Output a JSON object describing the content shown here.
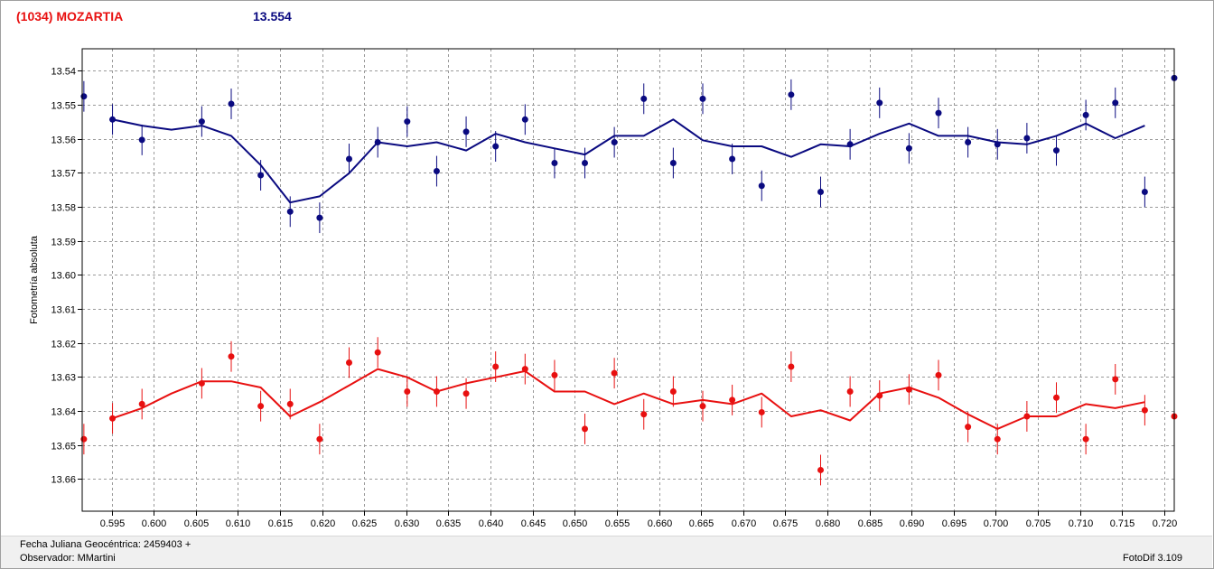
{
  "title": {
    "object": "(1034) MOZARTIA",
    "magnitude": "13.554"
  },
  "footer": {
    "jd_label": "Fecha Juliana Geocéntrica: 2459403 +",
    "observer": "Observador: MMartini",
    "software": "FotoDif 3.109"
  },
  "colors": {
    "series_blue": "#0a0a80",
    "series_red": "#e81010",
    "title_name": "#e81010",
    "title_mag": "#0a0a80"
  },
  "chart_data": {
    "type": "scatter",
    "ylabel": "Fotometría absoluta",
    "xlabel": "",
    "xlim": [
      0.5915,
      0.7212
    ],
    "ylim": [
      13.5335,
      13.6695
    ],
    "y_inverted": true,
    "grid": true,
    "x_ticks": [
      "0.595",
      "0.600",
      "0.605",
      "0.610",
      "0.615",
      "0.620",
      "0.625",
      "0.630",
      "0.635",
      "0.640",
      "0.645",
      "0.650",
      "0.655",
      "0.660",
      "0.665",
      "0.670",
      "0.675",
      "0.680",
      "0.685",
      "0.690",
      "0.695",
      "0.700",
      "0.705",
      "0.710",
      "0.715",
      "0.720"
    ],
    "y_ticks": [
      "13.54",
      "13.55",
      "13.56",
      "13.57",
      "13.58",
      "13.59",
      "13.60",
      "13.61",
      "13.62",
      "13.63",
      "13.64",
      "13.65",
      "13.66"
    ],
    "series": [
      {
        "color": "#0a0a80",
        "error": 0.0045,
        "points": [
          [
            0.5917,
            13.5475
          ],
          [
            0.5951,
            13.5543
          ],
          [
            0.5986,
            13.5603
          ],
          [
            0.6057,
            13.5549
          ],
          [
            0.6092,
            13.5497
          ],
          [
            0.6127,
            13.5707
          ],
          [
            0.6162,
            13.5814
          ],
          [
            0.6197,
            13.5832
          ],
          [
            0.6232,
            13.5659
          ],
          [
            0.6266,
            13.561
          ],
          [
            0.6301,
            13.5549
          ],
          [
            0.6336,
            13.5695
          ],
          [
            0.6371,
            13.5579
          ],
          [
            0.6406,
            13.5622
          ],
          [
            0.6441,
            13.5543
          ],
          [
            0.6476,
            13.5671
          ],
          [
            0.6512,
            13.5671
          ],
          [
            0.6547,
            13.561
          ],
          [
            0.6582,
            13.5482
          ],
          [
            0.6617,
            13.5671
          ],
          [
            0.6652,
            13.5482
          ],
          [
            0.6687,
            13.5659
          ],
          [
            0.6722,
            13.5738
          ],
          [
            0.6757,
            13.547
          ],
          [
            0.6792,
            13.5756
          ],
          [
            0.6827,
            13.5616
          ],
          [
            0.6862,
            13.5494
          ],
          [
            0.6897,
            13.5628
          ],
          [
            0.6932,
            13.5524
          ],
          [
            0.6967,
            13.561
          ],
          [
            0.7002,
            13.5616
          ],
          [
            0.7037,
            13.5598
          ],
          [
            0.7072,
            13.5634
          ],
          [
            0.7107,
            13.553
          ],
          [
            0.7142,
            13.5494
          ],
          [
            0.7177,
            13.5756
          ],
          [
            0.7212,
            13.5421
          ]
        ],
        "line": [
          [
            0.5951,
            13.5543
          ],
          [
            0.5986,
            13.5561
          ],
          [
            0.6021,
            13.5573
          ],
          [
            0.6057,
            13.5561
          ],
          [
            0.6092,
            13.5591
          ],
          [
            0.6127,
            13.5677
          ],
          [
            0.6162,
            13.5787
          ],
          [
            0.6197,
            13.5769
          ],
          [
            0.6232,
            13.5701
          ],
          [
            0.6266,
            13.561
          ],
          [
            0.6301,
            13.5622
          ],
          [
            0.6336,
            13.561
          ],
          [
            0.6371,
            13.5634
          ],
          [
            0.6406,
            13.5585
          ],
          [
            0.6441,
            13.561
          ],
          [
            0.6476,
            13.5628
          ],
          [
            0.6512,
            13.5646
          ],
          [
            0.6547,
            13.5591
          ],
          [
            0.6582,
            13.5591
          ],
          [
            0.6617,
            13.5543
          ],
          [
            0.6652,
            13.5604
          ],
          [
            0.6687,
            13.5622
          ],
          [
            0.6722,
            13.5622
          ],
          [
            0.6757,
            13.5653
          ],
          [
            0.6792,
            13.5616
          ],
          [
            0.6827,
            13.5622
          ],
          [
            0.6862,
            13.5585
          ],
          [
            0.6897,
            13.5555
          ],
          [
            0.6932,
            13.5591
          ],
          [
            0.6967,
            13.5591
          ],
          [
            0.7002,
            13.561
          ],
          [
            0.7037,
            13.5616
          ],
          [
            0.7072,
            13.5591
          ],
          [
            0.7107,
            13.5555
          ],
          [
            0.7142,
            13.5598
          ],
          [
            0.7177,
            13.5561
          ]
        ]
      },
      {
        "color": "#e81010",
        "error": 0.0045,
        "points": [
          [
            0.5917,
            13.6483
          ],
          [
            0.5951,
            13.6422
          ],
          [
            0.5986,
            13.638
          ],
          [
            0.6057,
            13.6319
          ],
          [
            0.6092,
            13.624
          ],
          [
            0.6127,
            13.6386
          ],
          [
            0.6162,
            13.638
          ],
          [
            0.6197,
            13.6483
          ],
          [
            0.6232,
            13.6258
          ],
          [
            0.6266,
            13.6228
          ],
          [
            0.6301,
            13.6343
          ],
          [
            0.6336,
            13.6343
          ],
          [
            0.6371,
            13.6349
          ],
          [
            0.6406,
            13.627
          ],
          [
            0.6441,
            13.6277
          ],
          [
            0.6476,
            13.6295
          ],
          [
            0.6512,
            13.6453
          ],
          [
            0.6547,
            13.6289
          ],
          [
            0.6582,
            13.641
          ],
          [
            0.6617,
            13.6343
          ],
          [
            0.6652,
            13.6386
          ],
          [
            0.6687,
            13.6368
          ],
          [
            0.6722,
            13.6404
          ],
          [
            0.6757,
            13.627
          ],
          [
            0.6792,
            13.6574
          ],
          [
            0.6827,
            13.6343
          ],
          [
            0.6862,
            13.6355
          ],
          [
            0.6897,
            13.6337
          ],
          [
            0.6932,
            13.6295
          ],
          [
            0.6967,
            13.6447
          ],
          [
            0.7002,
            13.6483
          ],
          [
            0.7037,
            13.6416
          ],
          [
            0.7072,
            13.6361
          ],
          [
            0.7107,
            13.6483
          ],
          [
            0.7142,
            13.6307
          ],
          [
            0.7177,
            13.6398
          ],
          [
            0.7212,
            13.6416
          ]
        ],
        "line": [
          [
            0.5951,
            13.6422
          ],
          [
            0.5986,
            13.6392
          ],
          [
            0.6021,
            13.6349
          ],
          [
            0.6057,
            13.6313
          ],
          [
            0.6092,
            13.6313
          ],
          [
            0.6127,
            13.6331
          ],
          [
            0.6162,
            13.6416
          ],
          [
            0.6197,
            13.6374
          ],
          [
            0.6232,
            13.6325
          ],
          [
            0.6266,
            13.6277
          ],
          [
            0.6301,
            13.6301
          ],
          [
            0.6336,
            13.6343
          ],
          [
            0.6371,
            13.6319
          ],
          [
            0.6406,
            13.6301
          ],
          [
            0.6441,
            13.6283
          ],
          [
            0.6476,
            13.6343
          ],
          [
            0.6512,
            13.6343
          ],
          [
            0.6547,
            13.638
          ],
          [
            0.6582,
            13.6349
          ],
          [
            0.6617,
            13.638
          ],
          [
            0.6652,
            13.6368
          ],
          [
            0.6687,
            13.638
          ],
          [
            0.6722,
            13.6349
          ],
          [
            0.6757,
            13.6416
          ],
          [
            0.6792,
            13.6398
          ],
          [
            0.6827,
            13.6428
          ],
          [
            0.6862,
            13.6349
          ],
          [
            0.6897,
            13.6331
          ],
          [
            0.6932,
            13.6361
          ],
          [
            0.6967,
            13.641
          ],
          [
            0.7002,
            13.6453
          ],
          [
            0.7037,
            13.6416
          ],
          [
            0.7072,
            13.6416
          ],
          [
            0.7107,
            13.638
          ],
          [
            0.7142,
            13.6392
          ],
          [
            0.7177,
            13.6374
          ]
        ]
      }
    ]
  }
}
